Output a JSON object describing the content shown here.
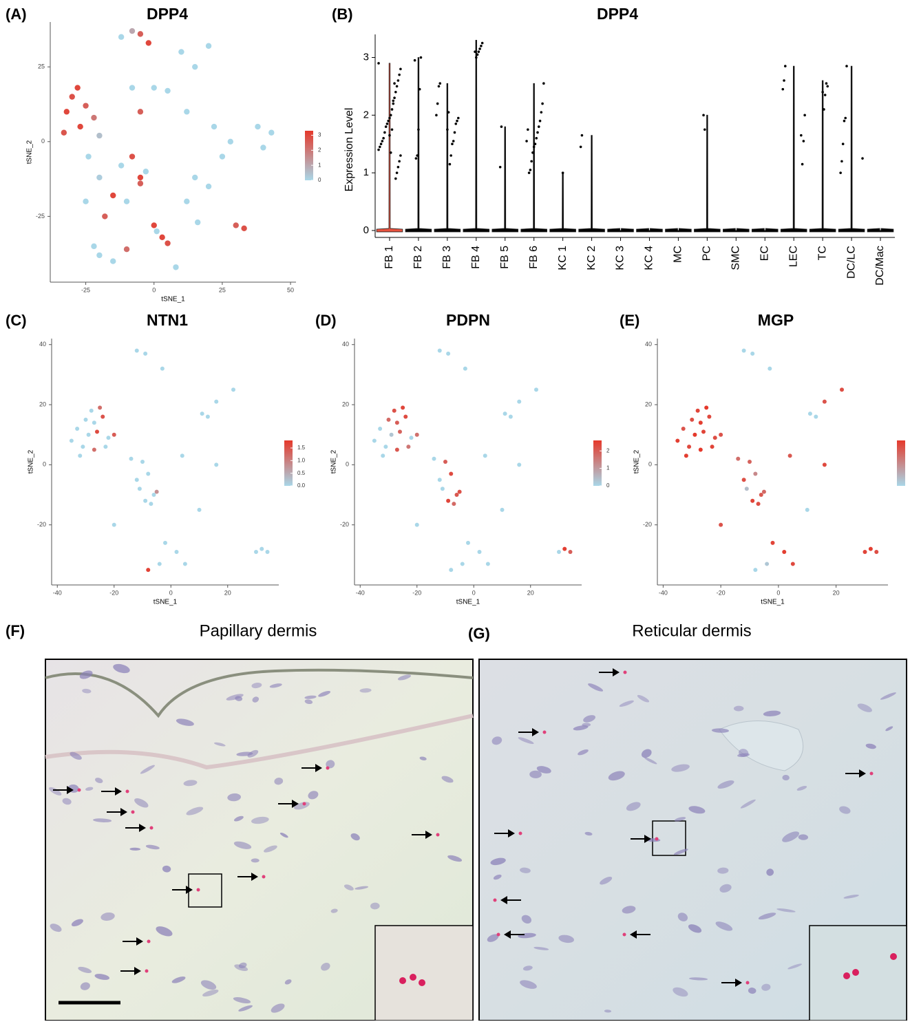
{
  "chart_data": [
    {
      "type": "scatter",
      "label": "(A)",
      "title": "DPP4",
      "xlabel": "tSNE_1",
      "ylabel": "tSNE_2",
      "xlim": [
        -38,
        52
      ],
      "xticks": [
        -25,
        0,
        25,
        50
      ],
      "ylim": [
        -47,
        40
      ],
      "yticks": [
        -25,
        0,
        25
      ],
      "colors": [
        "#a9d7e8",
        "#e5392b"
      ],
      "color_lim": [
        0,
        3.3
      ],
      "color_ticks": [
        0,
        1,
        2,
        3
      ],
      "x": [
        -8,
        -5,
        -2,
        -12,
        -32,
        -30,
        -28,
        -25,
        -22,
        -33,
        -27,
        -20,
        -24,
        -20,
        -15,
        -12,
        -8,
        -5,
        -10,
        -25,
        -18,
        -5,
        -3,
        -20,
        -15,
        -10,
        -22,
        0,
        3,
        5,
        1,
        8,
        10,
        15,
        20,
        12,
        22,
        25,
        15,
        20,
        12,
        28,
        16,
        30,
        33,
        40,
        43,
        38,
        5,
        0,
        -8,
        -5
      ],
      "y": [
        37,
        36,
        33,
        35,
        10,
        15,
        18,
        12,
        8,
        3,
        5,
        2,
        -5,
        -12,
        -18,
        -8,
        -5,
        -12,
        -20,
        -20,
        -25,
        -14,
        -10,
        -38,
        -40,
        -36,
        -35,
        -28,
        -32,
        -34,
        -30,
        -42,
        30,
        25,
        32,
        10,
        5,
        -5,
        -12,
        -15,
        -20,
        0,
        -27,
        -28,
        -29,
        -2,
        3,
        5,
        17,
        18,
        18,
        10
      ],
      "values": [
        1,
        2.5,
        3,
        0,
        3,
        2.8,
        3,
        2.5,
        2,
        2.7,
        3,
        0.5,
        0,
        0.2,
        3,
        0,
        2.8,
        3,
        0,
        0,
        2.5,
        2.5,
        0,
        0,
        0,
        2.2,
        0,
        3,
        3,
        2.8,
        0,
        0,
        0,
        0,
        0,
        0,
        0,
        0,
        0,
        0,
        0,
        0,
        0,
        2.5,
        2.8,
        0,
        0,
        0,
        0,
        0,
        0,
        2.5
      ]
    },
    {
      "type": "violin",
      "label": "(B)",
      "title": "DPP4",
      "ylabel": "Expression Level",
      "ylim": [
        -0.12,
        3.4
      ],
      "yticks": [
        0,
        1,
        2,
        3
      ],
      "categories": [
        "FB 1",
        "FB 2",
        "FB 3",
        "FB 4",
        "FB 5",
        "FB 6",
        "KC 1",
        "KC 2",
        "KC 3",
        "KC 4",
        "MC",
        "PC",
        "SMC",
        "EC",
        "LEC",
        "TC",
        "DC/LC",
        "DC/Mac"
      ],
      "values": [
        2.9,
        3.0,
        2.55,
        3.3,
        1.8,
        2.55,
        1.0,
        1.65,
        0,
        0,
        0,
        2.0,
        0,
        0,
        2.85,
        2.6,
        2.85,
        0
      ],
      "fill_colors": [
        "#e8533f",
        "#000000",
        "#000000",
        "#000000",
        "#000000",
        "#000000",
        "#000000",
        "#000000",
        "#000000",
        "#000000",
        "#000000",
        "#000000",
        "#000000",
        "#000000",
        "#000000",
        "#000000",
        "#000000",
        "#000000"
      ],
      "point_color": "#000000",
      "points": [
        [
          2.9,
          2.8,
          2.7,
          2.6,
          2.5,
          2.4,
          2.3,
          2.2,
          2.1,
          2.0,
          1.95,
          1.9,
          1.85,
          1.8,
          1.7,
          1.6,
          1.55,
          1.5,
          1.45,
          1.4,
          1.3,
          1.2,
          1.1,
          1.0,
          0.9,
          2.55,
          2.25,
          1.75,
          1.35,
          1.65
        ],
        [
          3.0,
          2.45,
          1.75,
          1.3,
          1.25,
          2.95
        ],
        [
          2.55,
          2.5,
          2.2,
          2.0,
          1.95,
          1.9,
          1.85,
          1.7,
          1.55,
          1.5,
          1.3,
          1.15,
          2.05,
          1.75
        ],
        [
          3.25,
          3.2,
          3.15,
          3.1,
          3.05,
          3.0,
          3.1
        ],
        [
          1.8,
          1.1
        ],
        [
          2.55,
          2.2,
          2.05,
          1.9,
          1.8,
          1.7,
          1.6,
          1.5,
          1.45,
          1.35,
          1.2,
          1.05,
          1.0,
          1.75,
          1.55
        ],
        [
          1.0
        ],
        [
          1.65,
          1.45
        ],
        [],
        [],
        [],
        [
          1.75,
          2.0
        ],
        [],
        [],
        [
          2.85,
          2.6,
          2.45,
          2.0,
          1.55,
          1.15,
          1.65
        ],
        [
          2.5,
          2.55,
          2.35,
          2.1,
          2.4
        ],
        [
          2.85,
          1.95,
          1.9,
          1.5,
          1.2,
          1.0,
          1.25
        ],
        []
      ]
    },
    {
      "type": "scatter",
      "label": "(C)",
      "title": "NTN1",
      "xlabel": "tSNE_1",
      "ylabel": "tSNE_2",
      "xlim": [
        -42,
        38
      ],
      "xticks": [
        -40,
        -20,
        0,
        20
      ],
      "ylim": [
        -40,
        42
      ],
      "yticks": [
        -20,
        0,
        20,
        40
      ],
      "colors": [
        "#a9d7e8",
        "#e5392b"
      ],
      "color_lim": [
        0,
        1.8
      ],
      "color_ticks": [
        {
          "value": 0,
          "label": "0.0"
        },
        {
          "value": 0.5,
          "label": "0.5"
        },
        {
          "value": 1,
          "label": "1.0"
        },
        {
          "value": 1.5,
          "label": "1.5"
        }
      ],
      "x": [
        -28,
        -25,
        -30,
        -27,
        -24,
        -33,
        -29,
        -26,
        -22,
        -35,
        -31,
        -27,
        -23,
        -20,
        -32,
        -14,
        -10,
        -8,
        -12,
        -6,
        -9,
        -5,
        -11,
        -7,
        -12,
        -9,
        -3,
        -2,
        2,
        5,
        -4,
        11,
        13,
        16,
        22,
        4,
        16,
        10,
        -20,
        32,
        34,
        30,
        -8
      ],
      "y": [
        18,
        19,
        15,
        14,
        16,
        12,
        10,
        11,
        9,
        8,
        6,
        5,
        6,
        10,
        3,
        2,
        1,
        -3,
        -5,
        -10,
        -12,
        -9,
        -8,
        -13,
        38,
        37,
        32,
        -26,
        -29,
        -33,
        -33,
        17,
        16,
        21,
        25,
        3,
        0,
        -15,
        -20,
        -28,
        -29,
        -29,
        -35
      ],
      "values": [
        0,
        1.2,
        0,
        0,
        1.5,
        0,
        0,
        1.6,
        0,
        0,
        0,
        1.2,
        0,
        1.4,
        0,
        0,
        0,
        0,
        0,
        0,
        0,
        0.8,
        0,
        0,
        0,
        0,
        0,
        0,
        0,
        0,
        0,
        0,
        0,
        0,
        0,
        0,
        0,
        0,
        0,
        0,
        0,
        0,
        1.7
      ]
    },
    {
      "type": "scatter",
      "label": "(D)",
      "title": "PDPN",
      "xlabel": "tSNE_1",
      "ylabel": "tSNE_2",
      "xlim": [
        -42,
        38
      ],
      "xticks": [
        -40,
        -20,
        0,
        20
      ],
      "ylim": [
        -40,
        42
      ],
      "yticks": [
        -20,
        0,
        20,
        40
      ],
      "colors": [
        "#a9d7e8",
        "#e5392b"
      ],
      "color_lim": [
        0,
        2.6
      ],
      "color_ticks": [
        0,
        1,
        2
      ],
      "x": [
        -28,
        -25,
        -30,
        -27,
        -24,
        -33,
        -29,
        -26,
        -22,
        -35,
        -31,
        -27,
        -23,
        -20,
        -32,
        -14,
        -10,
        -8,
        -12,
        -6,
        -9,
        -5,
        -11,
        -7,
        -12,
        -9,
        -3,
        -2,
        2,
        5,
        -4,
        11,
        13,
        16,
        22,
        4,
        16,
        10,
        -20,
        32,
        34,
        30,
        -8
      ],
      "y": [
        18,
        19,
        15,
        14,
        16,
        12,
        10,
        11,
        9,
        8,
        6,
        5,
        6,
        10,
        3,
        2,
        1,
        -3,
        -5,
        -10,
        -12,
        -9,
        -8,
        -13,
        38,
        37,
        32,
        -26,
        -29,
        -33,
        -33,
        17,
        16,
        21,
        25,
        3,
        0,
        -15,
        -20,
        -28,
        -29,
        -29,
        -35
      ],
      "values": [
        2.2,
        2.4,
        1.8,
        2.0,
        2.3,
        0,
        0.3,
        1.9,
        0,
        0,
        0,
        2.1,
        1.6,
        1.7,
        0,
        0,
        2.0,
        2.3,
        0,
        2.1,
        2.4,
        2.2,
        0,
        1.8,
        0,
        0,
        0,
        0,
        0,
        0,
        0,
        0,
        0,
        0,
        0,
        0,
        0,
        0,
        0,
        2.5,
        2.0,
        0,
        0
      ]
    },
    {
      "type": "scatter",
      "label": "(E)",
      "title": "MGP",
      "xlabel": "tSNE_1",
      "ylabel": "tSNE_2",
      "xlim": [
        -42,
        38
      ],
      "xticks": [
        -40,
        -20,
        0,
        20
      ],
      "ylim": [
        -40,
        42
      ],
      "yticks": [
        -20,
        0,
        20,
        40
      ],
      "colors": [
        "#a9d7e8",
        "#e5392b"
      ],
      "color_lim": [
        0,
        3
      ],
      "x": [
        -28,
        -25,
        -30,
        -27,
        -24,
        -33,
        -29,
        -26,
        -22,
        -35,
        -31,
        -27,
        -23,
        -20,
        -32,
        -14,
        -10,
        -8,
        -12,
        -6,
        -9,
        -5,
        -11,
        -7,
        -12,
        -9,
        -3,
        -2,
        2,
        5,
        -4,
        11,
        13,
        16,
        22,
        4,
        16,
        10,
        -20,
        32,
        34,
        30,
        -8
      ],
      "y": [
        18,
        19,
        15,
        14,
        16,
        12,
        10,
        11,
        9,
        8,
        6,
        5,
        6,
        10,
        3,
        2,
        1,
        -3,
        -5,
        -10,
        -12,
        -9,
        -8,
        -13,
        38,
        37,
        32,
        -26,
        -29,
        -33,
        -33,
        17,
        16,
        21,
        25,
        3,
        0,
        -15,
        -20,
        -28,
        -29,
        -29,
        -35
      ],
      "values": [
        2.8,
        3,
        2.6,
        2.9,
        2.7,
        2.5,
        3,
        2.8,
        2.6,
        2.9,
        2.7,
        3,
        2.8,
        2.5,
        2.9,
        2,
        2.2,
        1.5,
        2.6,
        2.4,
        2.8,
        2.1,
        0.5,
        2.6,
        0,
        0,
        0,
        2.8,
        2.9,
        2.7,
        0.3,
        0,
        0,
        2.5,
        2.6,
        2.4,
        2.7,
        0,
        2.5,
        2.9,
        2.6,
        2.8,
        0
      ]
    }
  ],
  "figure": {
    "micrographs": [
      {
        "label": "(F)",
        "title": "Papillary dermis"
      },
      {
        "label": "(G)",
        "title": "Reticular dermis"
      }
    ]
  }
}
